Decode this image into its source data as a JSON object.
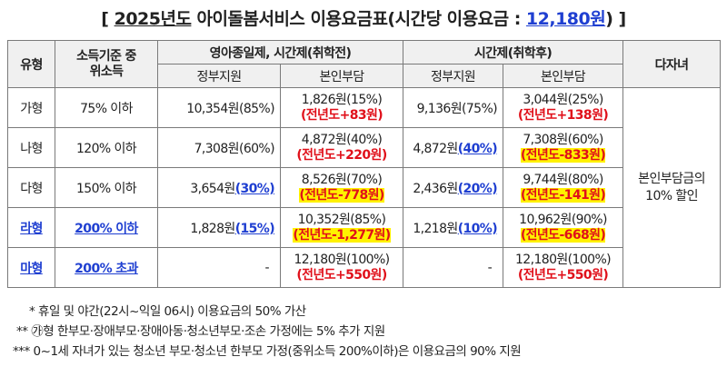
{
  "title": {
    "open": "[",
    "year": "2025년도",
    "main": " 아이돌봄서비스 이용요금표(시간당 이용요금 : ",
    "amount": "12,180원",
    "close": ") ]"
  },
  "headers": {
    "type": "유형",
    "income": "소득기준 중위소득",
    "group1": "영아종일제, 시간제(취학전)",
    "group2": "시간제(취학후)",
    "multi": "다자녀",
    "gov": "정부지원",
    "self": "본인부담"
  },
  "rows": [
    {
      "type": "가형",
      "income": "75% 이하",
      "g1_gov": "10,354원",
      "g1_gov_pct": "(85%)",
      "g1_self": "1,826원(15%)",
      "g1_diff": "(전년도+83원)",
      "g2_gov": "9,136원",
      "g2_gov_pct": "(75%)",
      "g2_self": "3,044원(25%)",
      "g2_diff": "(전년도+138원)"
    },
    {
      "type": "나형",
      "income": "120% 이하",
      "g1_gov": "7,308원",
      "g1_gov_pct": "(60%)",
      "g1_self": "4,872원(40%)",
      "g1_diff": "(전년도+220원)",
      "g2_gov": "4,872원",
      "g2_gov_pct": "(40%)",
      "g2_self": "7,308원(60%)",
      "g2_diff": "(전년도-833원)"
    },
    {
      "type": "다형",
      "income": "150% 이하",
      "g1_gov": "3,654원",
      "g1_gov_pct": "(30%)",
      "g1_self": "8,526원(70%)",
      "g1_diff": "(전년도-778원)",
      "g2_gov": "2,436원",
      "g2_gov_pct": "(20%)",
      "g2_self": "9,744원(80%)",
      "g2_diff": "(전년도-141원)"
    },
    {
      "type": "라형",
      "income": "200% 이하",
      "g1_gov": "1,828원",
      "g1_gov_pct": "(15%)",
      "g1_self": "10,352원(85%)",
      "g1_diff": "(전년도-1,277원)",
      "g2_gov": "1,218원",
      "g2_gov_pct": "(10%)",
      "g2_self": "10,962원(90%)",
      "g2_diff": "(전년도-668원)"
    },
    {
      "type": "마형",
      "income": "200% 초과",
      "g1_gov": "-",
      "g1_self": "12,180원(100%)",
      "g1_diff": "(전년도+550원)",
      "g2_gov": "-",
      "g2_self": "12,180원(100%)",
      "g2_diff": "(전년도+550원)"
    }
  ],
  "multi_child": "본인부담금의 10% 할인",
  "notes": [
    "* 휴일 및 야간(22시~익일 06시) 이용요금의 50% 가산",
    "** ㉮형 한부모·장애부모·장애아동·청소년부모·조손 가정에는 5% 추가 지원",
    "*** 0~1세 자녀가 있는 청소년 부모·청소년 한부모 가정(중위소득 200%이하)은 이용요금의 90% 지원"
  ],
  "colors": {
    "blue": "#1f3fd1",
    "red": "#e0101a",
    "highlight": "#fff200"
  }
}
